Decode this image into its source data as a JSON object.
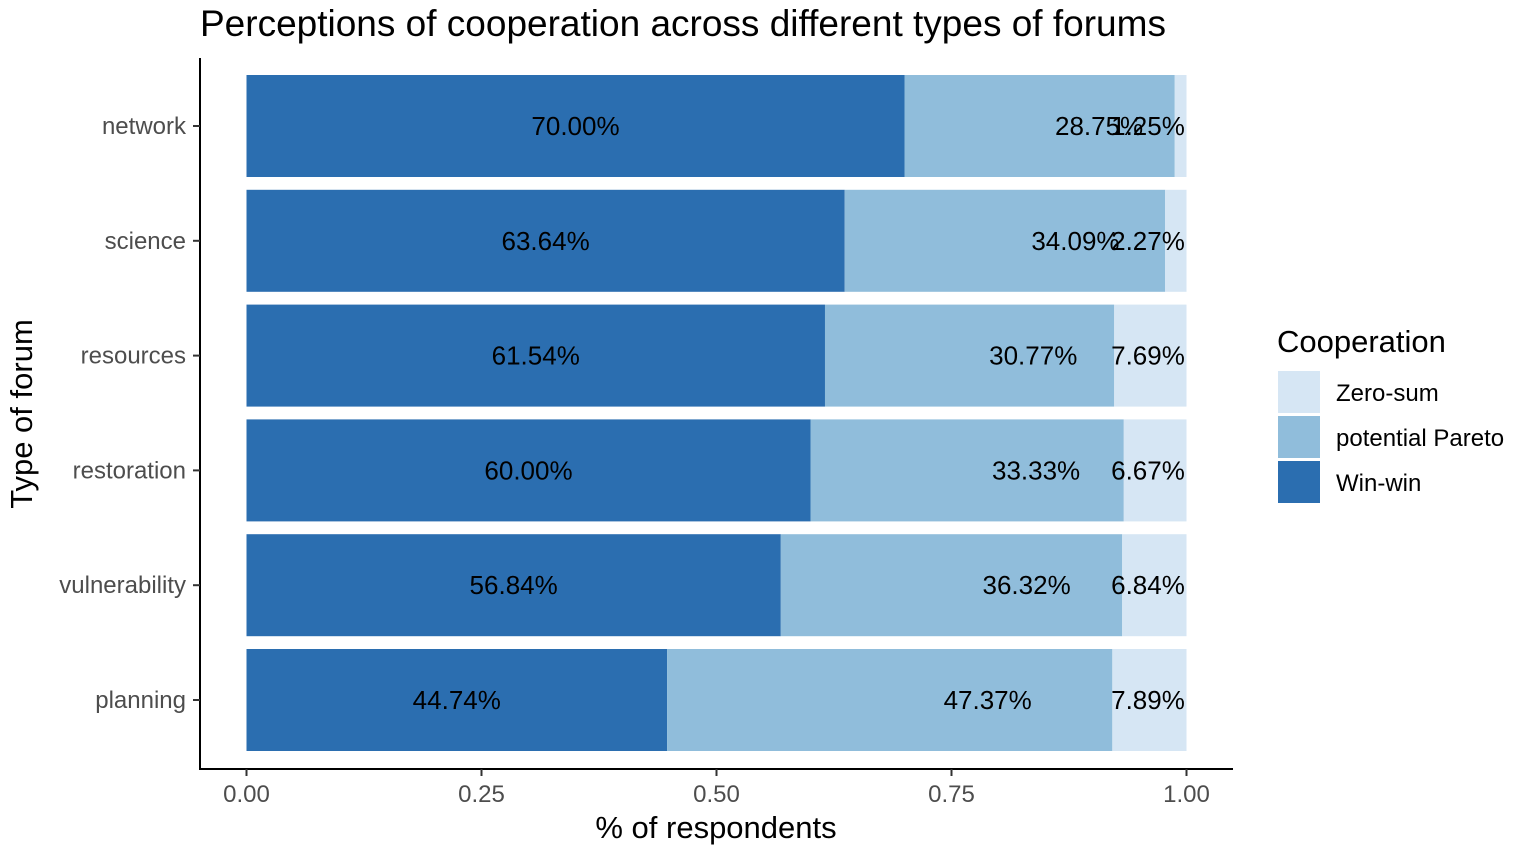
{
  "chart_data": {
    "type": "bar",
    "orientation": "horizontal",
    "stacked": true,
    "title": "Perceptions of cooperation across different types of forums",
    "xlabel": "% of respondents",
    "ylabel": "Type of forum",
    "xlim": [
      0,
      1
    ],
    "x_ticks": [
      "0.00",
      "0.25",
      "0.50",
      "0.75",
      "1.00"
    ],
    "x_tick_values": [
      0,
      0.25,
      0.5,
      0.75,
      1.0
    ],
    "categories": [
      "network",
      "science",
      "resources",
      "restoration",
      "vulnerability",
      "planning"
    ],
    "series": [
      {
        "name": "Win-win",
        "color": "#2b6eb0",
        "values": [
          0.7,
          0.6364,
          0.6154,
          0.6,
          0.5684,
          0.4474
        ],
        "labels": [
          "70.00%",
          "63.64%",
          "61.54%",
          "60.00%",
          "56.84%",
          "44.74%"
        ]
      },
      {
        "name": "potential Pareto",
        "color": "#90bddb",
        "values": [
          0.2875,
          0.3409,
          0.3077,
          0.3333,
          0.3632,
          0.4737
        ],
        "labels": [
          "28.75%",
          "34.09%",
          "30.77%",
          "33.33%",
          "36.32%",
          "47.37%"
        ]
      },
      {
        "name": "Zero-sum",
        "color": "#d6e6f4",
        "values": [
          0.0125,
          0.0227,
          0.0769,
          0.0667,
          0.0684,
          0.0789
        ],
        "labels": [
          "1.25%",
          "2.27%",
          "7.69%",
          "6.67%",
          "6.84%",
          "7.89%"
        ]
      }
    ],
    "legend": {
      "title": "Cooperation",
      "placement": "right",
      "order": [
        "Zero-sum",
        "potential Pareto",
        "Win-win"
      ]
    },
    "grid": false
  }
}
